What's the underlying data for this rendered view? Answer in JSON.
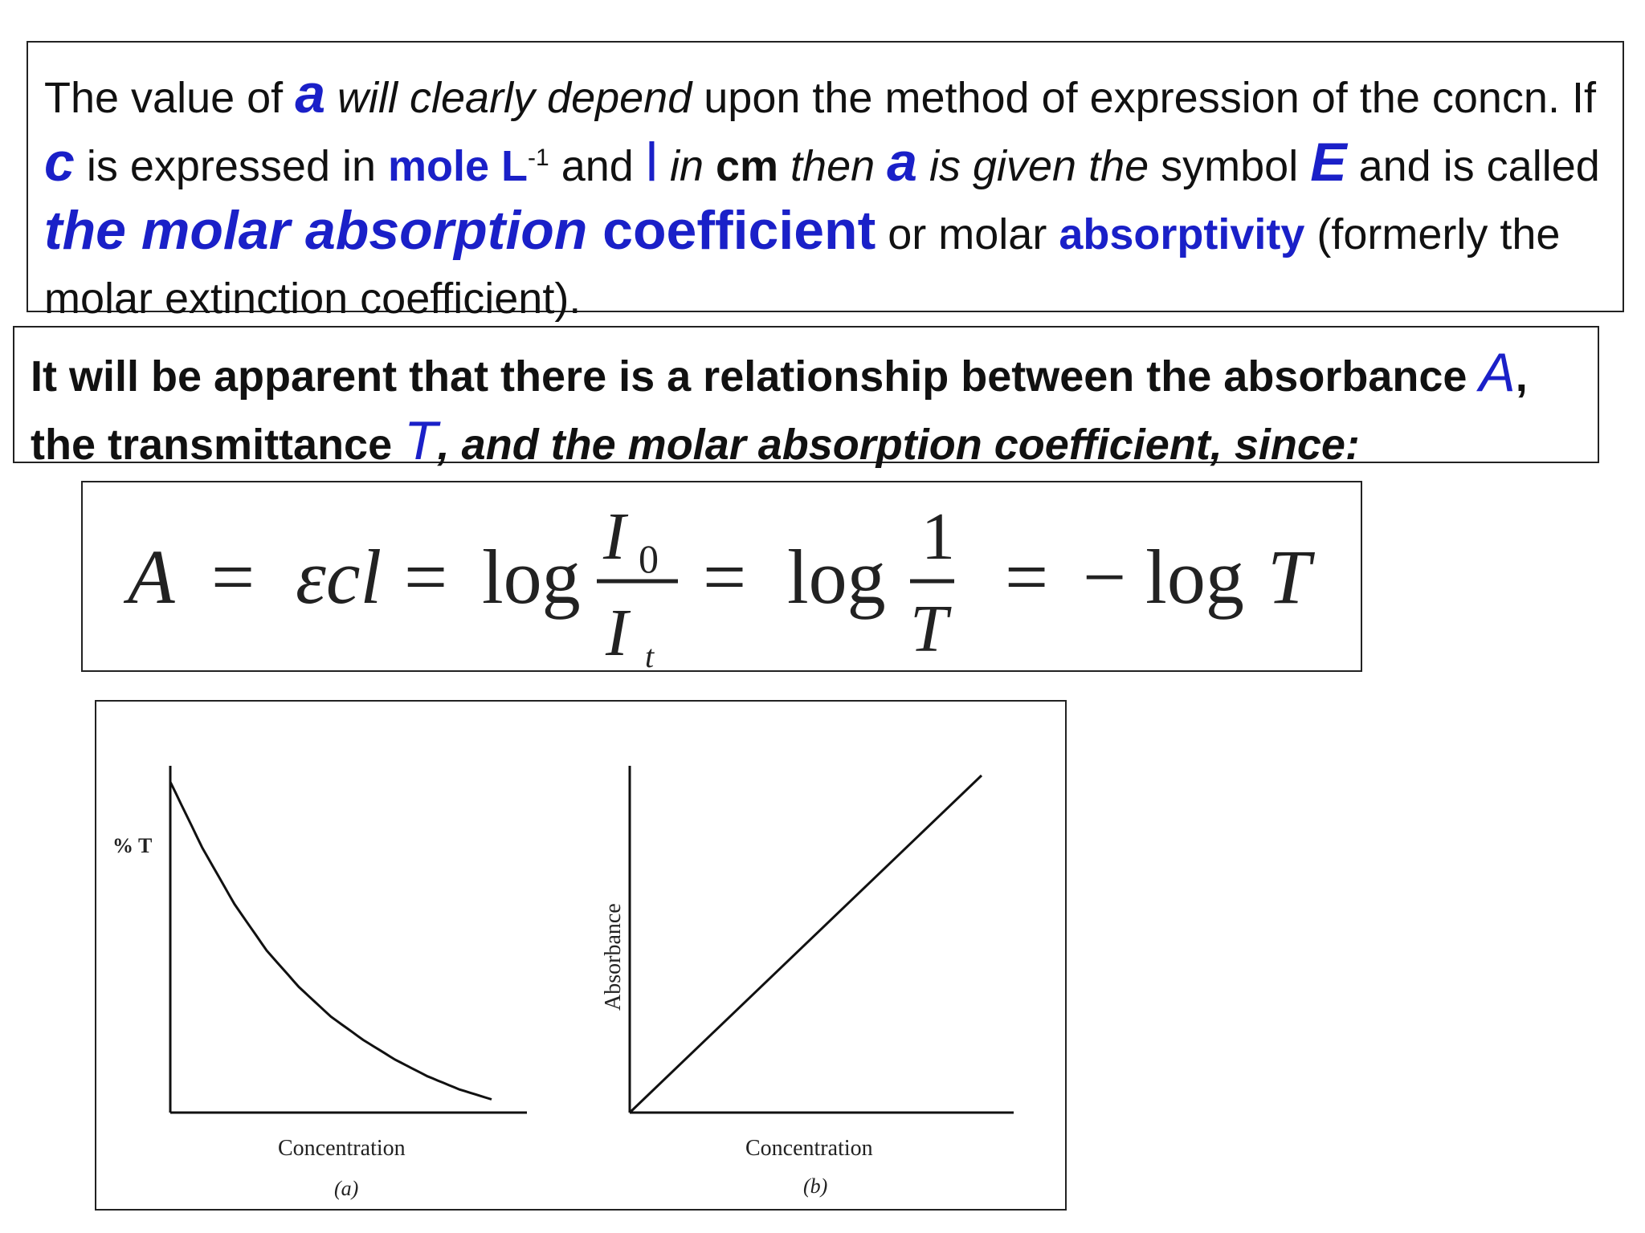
{
  "para1": {
    "s1": "The value of ",
    "s2": "a",
    "s3": " will clearly depend",
    "s4": " upon the method of expression of the concn. If ",
    "s5": "c",
    "s6": " is expressed in ",
    "s7": "mole L",
    "s8": "-1",
    "s9": " and ",
    "s10": "l",
    "s11": " in ",
    "s12": "cm",
    "s13": " then ",
    "s14": "a",
    "s15": " is given the",
    "s16": " symbol ",
    "s17": "E",
    "s18": " and is called ",
    "s19": "the molar absorption",
    "s20": " coefficient",
    "s21": " or molar ",
    "s22": "absorptivity",
    "s23": " (formerly the molar extinction coefficient)."
  },
  "para2": {
    "s1": "It will be apparent that there is a relationship between the absorbance ",
    "s2": "A",
    "s3": ", the transmittance ",
    "s4": "T",
    "s5": ", and the molar absorption coefficient, since:"
  },
  "equation": {
    "A": "A",
    "eq": "=",
    "ecl": "εcl",
    "log": "log",
    "I0_main": "I",
    "I0_sub": "0",
    "It_main": "I",
    "It_sub": "t",
    "one": "1",
    "T": "T",
    "neglog": "− log",
    "T_end": "T"
  },
  "chart_data": [
    {
      "type": "line",
      "ylabel": "% T",
      "xlabel": "Concentration",
      "caption": "(a)",
      "series": [
        {
          "x": [
            0,
            0.1,
            0.2,
            0.3,
            0.4,
            0.5,
            0.6,
            0.7,
            0.8,
            0.9,
            1.0
          ],
          "values": [
            1.0,
            0.8,
            0.63,
            0.49,
            0.38,
            0.29,
            0.22,
            0.16,
            0.11,
            0.07,
            0.04
          ]
        }
      ],
      "grid": false
    },
    {
      "type": "line",
      "ylabel": "Absorbance",
      "xlabel": "Concentration",
      "caption": "(b)",
      "series": [
        {
          "x": [
            0,
            1.0
          ],
          "values": [
            0,
            1.0
          ]
        }
      ],
      "grid": false
    }
  ]
}
